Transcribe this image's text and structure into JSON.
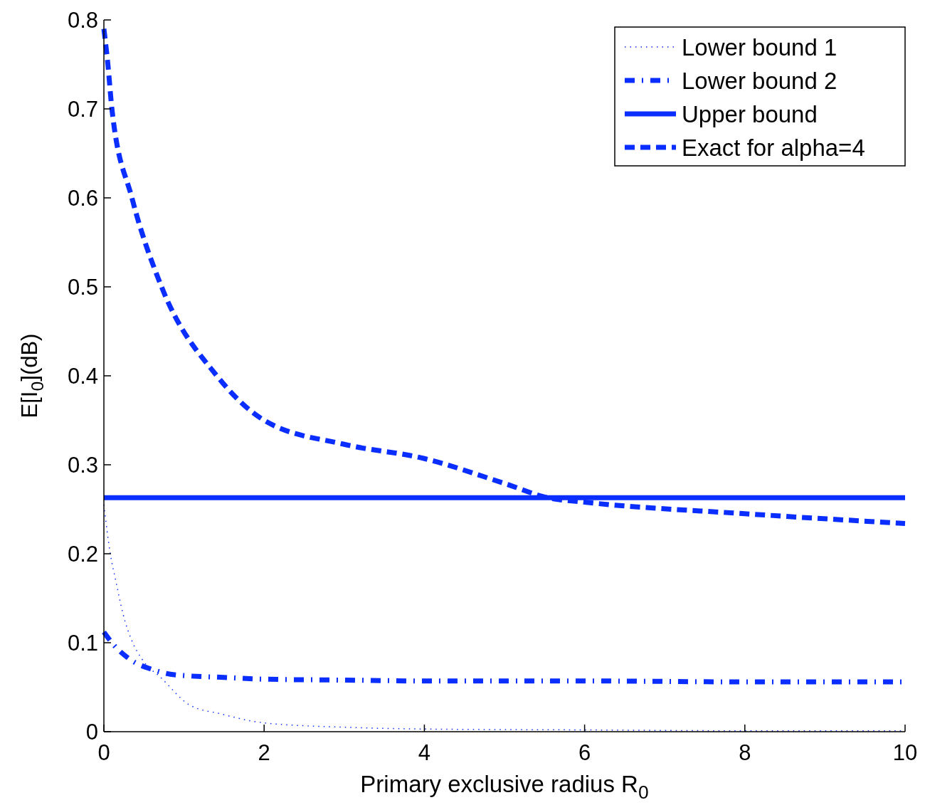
{
  "chart_data": {
    "type": "line",
    "xlabel": "Primary exclusive radius R$_{0}$",
    "ylabel": "E[I$_{0}$](dB)",
    "xlim": [
      0,
      10
    ],
    "ylim": [
      0,
      0.8
    ],
    "xticks": [
      0,
      2,
      4,
      6,
      8,
      10
    ],
    "yticks": [
      0,
      0.1,
      0.2,
      0.3,
      0.4,
      0.5,
      0.6,
      0.7,
      0.8
    ],
    "legend": "top right",
    "grid": false,
    "series": [
      {
        "name": "Lower bound 1",
        "color": "#0a2eff",
        "line_style": "dotted",
        "x": [
          0,
          0.08,
          0.15,
          0.24,
          0.36,
          0.48,
          0.72,
          1.07,
          1.46,
          1.99,
          3,
          4,
          6,
          8,
          10
        ],
        "values": [
          0.255,
          0.2,
          0.169,
          0.132,
          0.1,
          0.081,
          0.06,
          0.03,
          0.02,
          0.01,
          0.005,
          0.003,
          0.002,
          0.001,
          0.001
        ]
      },
      {
        "name": "Lower bound 2",
        "color": "#0a2eff",
        "line_style": "dashdot",
        "x": [
          0,
          0.1,
          0.33,
          0.6,
          0.88,
          1.5,
          2,
          3,
          4,
          6,
          8,
          10
        ],
        "values": [
          0.112,
          0.1,
          0.081,
          0.07,
          0.064,
          0.061,
          0.059,
          0.058,
          0.057,
          0.057,
          0.056,
          0.056
        ]
      },
      {
        "name": "Upper bound",
        "color": "#0a2eff",
        "line_style": "solid",
        "x": [
          0,
          10
        ],
        "values": [
          0.263,
          0.263
        ]
      },
      {
        "name": "Exact for alpha=4",
        "color": "#0a2eff",
        "line_style": "dashed",
        "x": [
          0,
          0.05,
          0.1,
          0.35,
          0.72,
          1.41,
          2,
          3,
          4,
          5,
          5.54,
          6,
          8,
          10
        ],
        "values": [
          0.79,
          0.75,
          0.7,
          0.6,
          0.5,
          0.4,
          0.35,
          0.323,
          0.307,
          0.279,
          0.263,
          0.258,
          0.245,
          0.234
        ]
      }
    ]
  }
}
